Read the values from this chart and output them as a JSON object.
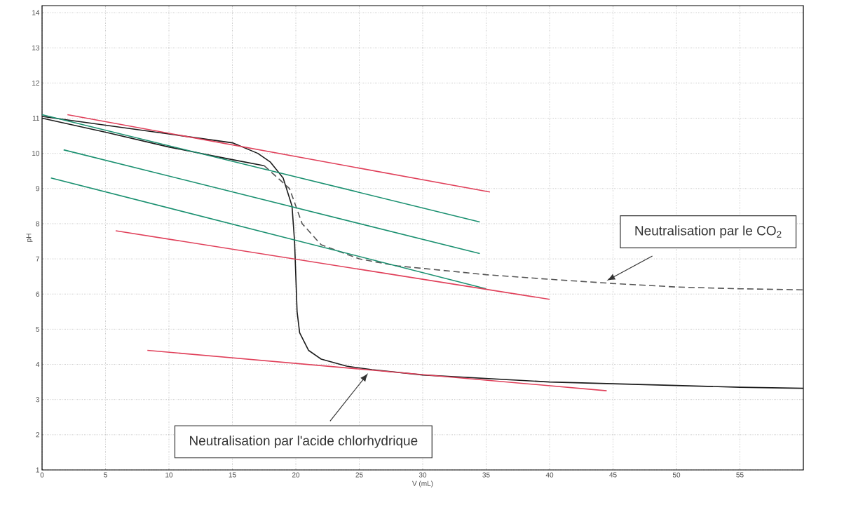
{
  "chart_data": {
    "type": "line",
    "xlabel": "V (mL)",
    "ylabel": "pH",
    "xlim": [
      0,
      60
    ],
    "xticks": [
      0,
      5,
      10,
      15,
      20,
      25,
      30,
      35,
      40,
      45,
      50,
      55
    ],
    "ylim": [
      1,
      14.2
    ],
    "yticks": [
      1,
      2,
      3,
      4,
      5,
      6,
      7,
      8,
      9,
      10,
      11,
      12,
      13,
      14
    ],
    "grid": true,
    "series": [
      {
        "color": "#1a1a1a",
        "line_style": "solid",
        "x": [
          0,
          5,
          10,
          15,
          17,
          18,
          19,
          19.7,
          19.9,
          20,
          20.1,
          20.3,
          21,
          22,
          24,
          26,
          30,
          35,
          40,
          45,
          50,
          55,
          60
        ],
        "values": [
          11.05,
          10.8,
          10.55,
          10.3,
          10.0,
          9.75,
          9.3,
          8.5,
          7.5,
          6.5,
          5.5,
          4.9,
          4.4,
          4.15,
          3.95,
          3.85,
          3.7,
          3.6,
          3.5,
          3.45,
          3.4,
          3.35,
          3.32
        ]
      },
      {
        "color": "#1a1a1a",
        "line_style": "solid",
        "x": [
          0,
          5,
          10,
          15,
          17.5
        ],
        "values": [
          11.0,
          10.6,
          10.18,
          9.82,
          9.65
        ]
      },
      {
        "color": "#555555",
        "line_style": "dashed",
        "x": [
          17.5,
          19.5,
          20.5,
          22,
          25,
          28,
          35,
          40,
          45,
          50,
          55,
          60
        ],
        "values": [
          9.65,
          9.0,
          8.0,
          7.4,
          7.0,
          6.8,
          6.55,
          6.42,
          6.3,
          6.2,
          6.15,
          6.12
        ]
      },
      {
        "color": "#e0405a",
        "line_style": "solid",
        "x": [
          2,
          35.3
        ],
        "values": [
          11.1,
          8.9
        ]
      },
      {
        "color": "#1a9070",
        "line_style": "solid",
        "x": [
          0,
          34.5
        ],
        "values": [
          11.1,
          8.05
        ]
      },
      {
        "color": "#1a9070",
        "line_style": "solid",
        "x": [
          1.7,
          34.5
        ],
        "values": [
          10.1,
          7.15
        ]
      },
      {
        "color": "#1a9070",
        "line_style": "solid",
        "x": [
          0.7,
          35
        ],
        "values": [
          9.3,
          6.15
        ]
      },
      {
        "color": "#e0405a",
        "line_style": "solid",
        "x": [
          5.8,
          40
        ],
        "values": [
          7.8,
          5.85
        ]
      },
      {
        "color": "#e0405a",
        "line_style": "solid",
        "x": [
          8.3,
          44.5
        ],
        "values": [
          4.4,
          3.25
        ]
      }
    ],
    "annotations": [
      "Neutralisation par le CO$_{2}$",
      "Neutralisation par l'acide chlorhydrique"
    ]
  }
}
